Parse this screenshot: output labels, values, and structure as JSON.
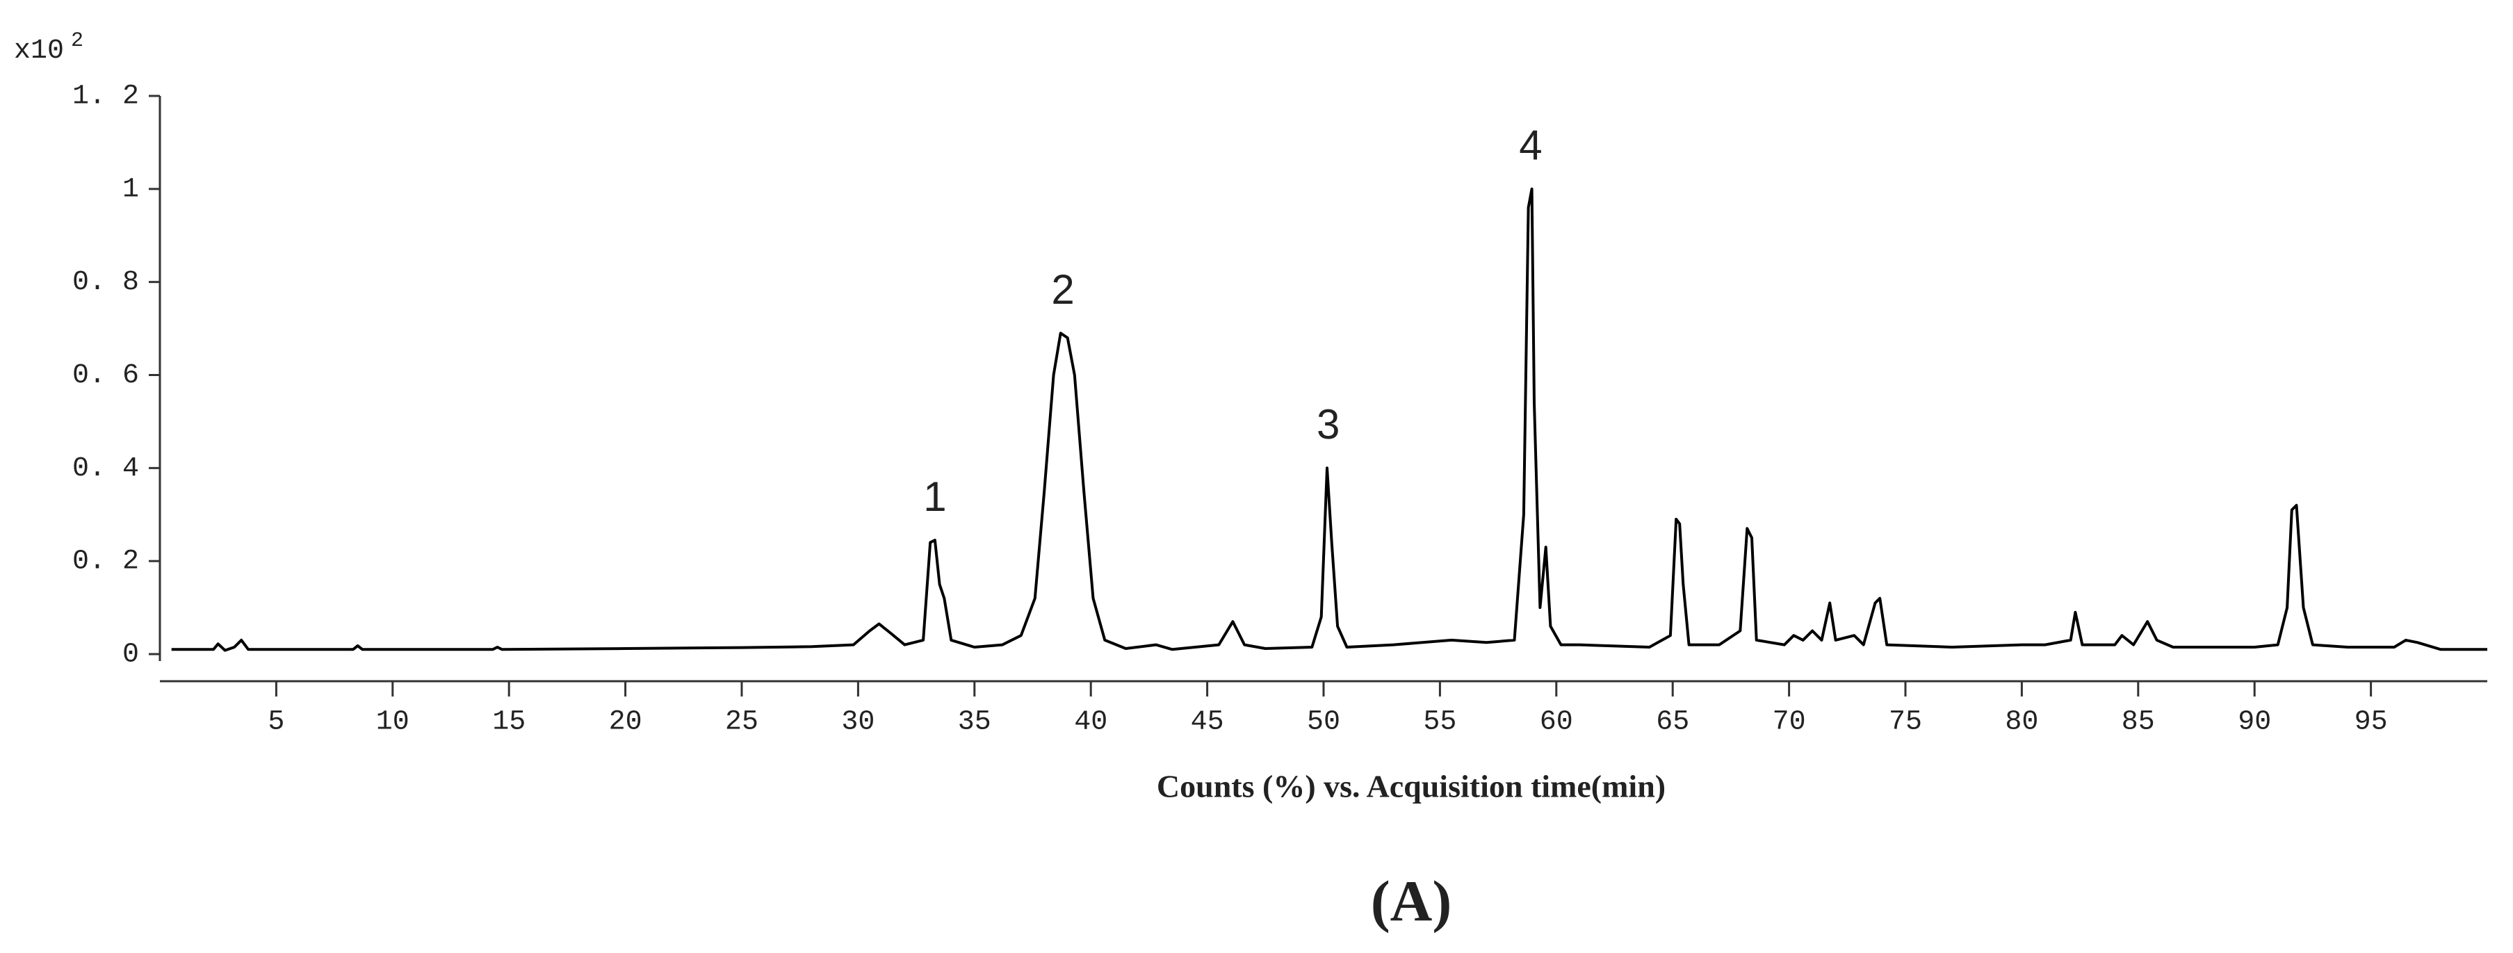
{
  "chart_data": {
    "type": "line",
    "x_label": "Counts (%) vs. Acquisition time(min)",
    "panel_label": "(A)",
    "y_multiplier": {
      "base": "x10",
      "exponent": "2"
    },
    "color": "#000000",
    "xlim": [
      0,
      100
    ],
    "ylim": [
      0,
      1.2
    ],
    "xticks": [
      5,
      10,
      15,
      20,
      25,
      30,
      35,
      40,
      45,
      50,
      55,
      60,
      65,
      70,
      75,
      80,
      85,
      90,
      95
    ],
    "yticks": [
      0,
      {
        "value": 0.2,
        "label": "0. 2"
      },
      {
        "value": 0.4,
        "label": "0. 4"
      },
      {
        "value": 0.6,
        "label": "0. 6"
      },
      {
        "value": 0.8,
        "label": "0. 8"
      },
      1,
      {
        "value": 1.2,
        "label": "1. 2"
      }
    ],
    "annotations": [
      {
        "text": "1",
        "x": 33.3
      },
      {
        "text": "2",
        "x": 38.8
      },
      {
        "text": "3",
        "x": 50.2
      },
      {
        "text": "4",
        "x": 58.9
      }
    ],
    "x": [
      0.5,
      2.3,
      2.5,
      2.8,
      3.2,
      3.5,
      3.8,
      8.3,
      8.5,
      8.7,
      14.3,
      14.5,
      14.7,
      20,
      25,
      28,
      29.8,
      30.5,
      30.9,
      31.4,
      32,
      32.8,
      33.1,
      33.3,
      33.5,
      33.7,
      34,
      35,
      36.2,
      37,
      37.6,
      38,
      38.4,
      38.7,
      39,
      39.3,
      39.7,
      40.1,
      40.6,
      41.5,
      42.8,
      43.5,
      45.5,
      46.1,
      46.6,
      47.5,
      49.5,
      49.9,
      50.15,
      50.35,
      50.6,
      51,
      53,
      55.5,
      57,
      58.2,
      58.6,
      58.8,
      58.95,
      59.05,
      59.3,
      59.55,
      59.75,
      60.2,
      61,
      64,
      64.9,
      65.15,
      65.3,
      65.45,
      65.7,
      67,
      67.9,
      68.2,
      68.4,
      68.6,
      69.8,
      70.2,
      70.6,
      71,
      71.4,
      71.75,
      72,
      72.8,
      73.2,
      73.7,
      73.9,
      74.2,
      77,
      80,
      81,
      82.1,
      82.3,
      82.6,
      84,
      84.3,
      84.8,
      85.4,
      85.8,
      86.5,
      90,
      91,
      91.4,
      91.6,
      91.8,
      92.1,
      92.5,
      94,
      96,
      96.5,
      97,
      98,
      100
    ],
    "values": [
      0.01,
      0.01,
      0.022,
      0.008,
      0.015,
      0.03,
      0.01,
      0.01,
      0.018,
      0.01,
      0.01,
      0.015,
      0.01,
      0.012,
      0.014,
      0.016,
      0.02,
      0.05,
      0.065,
      0.045,
      0.02,
      0.03,
      0.24,
      0.245,
      0.15,
      0.12,
      0.03,
      0.015,
      0.02,
      0.04,
      0.12,
      0.35,
      0.6,
      0.69,
      0.68,
      0.6,
      0.35,
      0.12,
      0.03,
      0.012,
      0.02,
      0.01,
      0.02,
      0.07,
      0.02,
      0.012,
      0.015,
      0.08,
      0.4,
      0.24,
      0.06,
      0.015,
      0.02,
      0.03,
      0.025,
      0.03,
      0.3,
      0.96,
      1.0,
      0.54,
      0.1,
      0.23,
      0.06,
      0.02,
      0.02,
      0.015,
      0.04,
      0.29,
      0.28,
      0.15,
      0.02,
      0.02,
      0.05,
      0.27,
      0.25,
      0.03,
      0.02,
      0.04,
      0.03,
      0.05,
      0.03,
      0.11,
      0.03,
      0.04,
      0.02,
      0.11,
      0.12,
      0.02,
      0.015,
      0.02,
      0.02,
      0.03,
      0.09,
      0.02,
      0.02,
      0.04,
      0.02,
      0.07,
      0.03,
      0.015,
      0.015,
      0.02,
      0.1,
      0.31,
      0.32,
      0.1,
      0.02,
      0.015,
      0.015,
      0.03,
      0.025,
      0.01,
      0.01
    ]
  }
}
